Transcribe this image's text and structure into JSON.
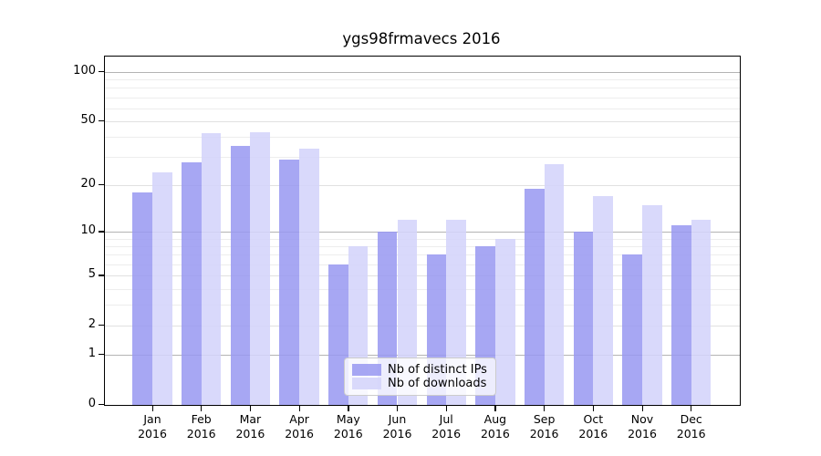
{
  "title": "ygs98frmavecs 2016",
  "chart_data": {
    "type": "bar",
    "title": "ygs98frmavecs 2016",
    "categories": [
      "Jan 2016",
      "Feb 2016",
      "Mar 2016",
      "Apr 2016",
      "May 2016",
      "Jun 2016",
      "Jul 2016",
      "Aug 2016",
      "Sep 2016",
      "Oct 2016",
      "Nov 2016",
      "Dec 2016"
    ],
    "series": [
      {
        "name": "Nb of distinct IPs",
        "color": "#9898f1",
        "alpha": 0.85,
        "values": [
          18,
          28,
          35,
          29,
          6,
          10,
          7,
          8,
          19,
          10,
          7,
          11
        ]
      },
      {
        "name": "Nb of downloads",
        "color": "#d4d4fa",
        "alpha": 0.88,
        "values": [
          24,
          42,
          43,
          34,
          8,
          12,
          12,
          9,
          27,
          17,
          15,
          12
        ]
      }
    ],
    "yscale": "log10(value+1)",
    "ylim": [
      0,
      125
    ],
    "yticks": [
      100,
      50,
      20,
      10,
      5,
      2,
      1,
      0
    ],
    "ytick_labels": [
      "100",
      "50",
      "20",
      "10",
      "5",
      "2",
      "1",
      "0"
    ],
    "minor_yticks": [
      3,
      4,
      6,
      7,
      8,
      9,
      30,
      40,
      60,
      70,
      80,
      90
    ],
    "grid": true,
    "grid_colors": {
      "power10": "#b4b4b4",
      "major": "#e1e1e1",
      "minor": "#ededed"
    },
    "xlabel": "",
    "ylabel": "",
    "legend_position": "lower center",
    "legend": {
      "entries": [
        "Nb of distinct IPs",
        "Nb of downloads"
      ]
    }
  }
}
